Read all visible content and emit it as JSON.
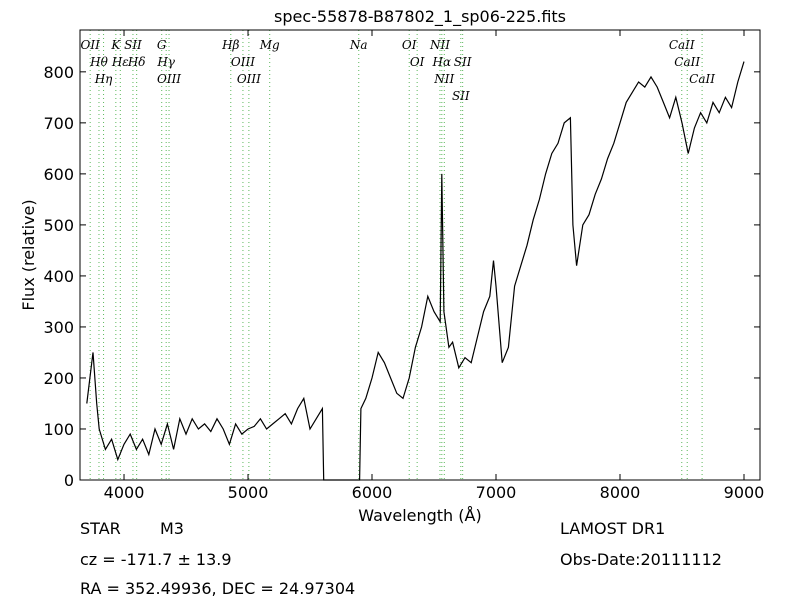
{
  "chart_data": {
    "type": "line",
    "title": "spec-55878-B87802_1_sp06-225.fits",
    "x_label": "Wavelength (Å)",
    "y_label": "Flux (relative)",
    "xlim": [
      3645,
      9129
    ],
    "ylim": [
      0,
      882
    ],
    "xticks": [
      4000,
      5000,
      6000,
      7000,
      8000,
      9000
    ],
    "yticks": [
      0,
      100,
      200,
      300,
      400,
      500,
      600,
      700,
      800
    ],
    "grid": false,
    "series": [
      {
        "color": "#000000",
        "x": [
          3700,
          3750,
          3780,
          3800,
          3850,
          3900,
          3950,
          4000,
          4050,
          4100,
          4150,
          4200,
          4250,
          4300,
          4350,
          4400,
          4450,
          4500,
          4550,
          4600,
          4650,
          4700,
          4750,
          4800,
          4850,
          4900,
          4950,
          5000,
          5050,
          5100,
          5150,
          5200,
          5250,
          5300,
          5350,
          5400,
          5450,
          5500,
          5550,
          5600,
          5610,
          5900,
          5910,
          5950,
          6000,
          6050,
          6100,
          6150,
          6200,
          6250,
          6300,
          6350,
          6400,
          6450,
          6500,
          6550,
          6563,
          6580,
          6620,
          6650,
          6700,
          6750,
          6800,
          6850,
          6900,
          6950,
          6980,
          7000,
          7050,
          7100,
          7150,
          7200,
          7250,
          7300,
          7350,
          7400,
          7450,
          7500,
          7550,
          7600,
          7620,
          7650,
          7700,
          7750,
          7800,
          7850,
          7900,
          7950,
          8000,
          8050,
          8100,
          8150,
          8200,
          8250,
          8300,
          8350,
          8400,
          8450,
          8500,
          8550,
          8600,
          8650,
          8700,
          8750,
          8800,
          8850,
          8900,
          8950,
          9000
        ],
        "values": [
          150,
          250,
          150,
          100,
          60,
          80,
          40,
          70,
          90,
          60,
          80,
          50,
          100,
          70,
          110,
          60,
          120,
          90,
          120,
          100,
          110,
          95,
          120,
          100,
          70,
          110,
          90,
          100,
          105,
          120,
          100,
          110,
          120,
          130,
          110,
          140,
          160,
          100,
          120,
          140,
          0,
          0,
          140,
          160,
          200,
          250,
          230,
          200,
          170,
          160,
          200,
          260,
          300,
          360,
          330,
          310,
          600,
          330,
          260,
          270,
          220,
          240,
          230,
          280,
          330,
          360,
          430,
          380,
          230,
          260,
          380,
          420,
          460,
          510,
          550,
          600,
          640,
          660,
          700,
          710,
          500,
          420,
          500,
          520,
          560,
          590,
          630,
          660,
          700,
          740,
          760,
          780,
          770,
          790,
          770,
          740,
          710,
          750,
          700,
          640,
          690,
          720,
          700,
          740,
          720,
          750,
          730,
          780,
          820
        ]
      }
    ],
    "line_color": "#5cb85c",
    "lines": [
      {
        "name": "OII",
        "wavelength": 3727
      },
      {
        "name": "Hθ",
        "wavelength": 3798
      },
      {
        "name": "Hη",
        "wavelength": 3835
      },
      {
        "name": "K",
        "wavelength": 3934
      },
      {
        "name": "Hε",
        "wavelength": 3970
      },
      {
        "name": "SII",
        "wavelength": 4072
      },
      {
        "name": "Hδ",
        "wavelength": 4102
      },
      {
        "name": "G",
        "wavelength": 4304
      },
      {
        "name": "Hγ",
        "wavelength": 4340
      },
      {
        "name": "OIII",
        "wavelength": 4363
      },
      {
        "name": "Hβ",
        "wavelength": 4861
      },
      {
        "name": "OIII",
        "wavelength": 4959
      },
      {
        "name": "OIII",
        "wavelength": 5007
      },
      {
        "name": "Mg",
        "wavelength": 5175
      },
      {
        "name": "Na",
        "wavelength": 5893
      },
      {
        "name": "OI",
        "wavelength": 6300
      },
      {
        "name": "OI",
        "wavelength": 6364
      },
      {
        "name": "NII",
        "wavelength": 6548
      },
      {
        "name": "Hα",
        "wavelength": 6563
      },
      {
        "name": "NII",
        "wavelength": 6583
      },
      {
        "name": "SII",
        "wavelength": 6716
      },
      {
        "name": "SII",
        "wavelength": 6731
      },
      {
        "name": "CaII",
        "wavelength": 8498
      },
      {
        "name": "CaII",
        "wavelength": 8542
      },
      {
        "name": "CaII",
        "wavelength": 8662
      }
    ],
    "class": "STAR",
    "subclass": "M3",
    "redshift": "cz = -171.7 ± 13.9",
    "coordinates": "RA = 352.49936, DEC = 24.97304",
    "survey": "LAMOST DR1",
    "obs_date": "Obs-Date:20111112"
  }
}
